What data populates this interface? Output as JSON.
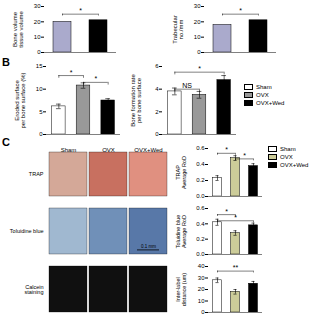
{
  "chart_data": [
    {
      "type": "bar",
      "categories": [
        null,
        null
      ],
      "values": [
        20,
        21
      ],
      "colors": [
        "#aaaacc",
        "black"
      ],
      "ylabel": "Bone volume\ntissue volume",
      "ylim": [
        0,
        30
      ],
      "yticks": [
        0,
        10,
        20,
        30
      ],
      "tick_labels": "y",
      "brackets": [
        {
          "x1": 0,
          "x2": 1,
          "y": 25,
          "label": "*"
        }
      ]
    },
    {
      "type": "bar",
      "categories": [
        null,
        null
      ],
      "values": [
        18,
        21
      ],
      "colors": [
        "#aaaacc",
        "black"
      ],
      "ylabel": "Trabecular\nno./mm",
      "ylim": [
        0,
        30
      ],
      "yticks": [
        0,
        10,
        20,
        30
      ],
      "tick_labels": "y",
      "brackets": [
        {
          "x1": 0,
          "x2": 1,
          "y": 25,
          "label": "*"
        }
      ]
    },
    {
      "type": "bar",
      "title": "B",
      "categories": [
        "Sham",
        "OVX",
        "OVX+Wed"
      ],
      "values": [
        6.2,
        10.8,
        7.5
      ],
      "errors": [
        0.5,
        0.6,
        0.4
      ],
      "colors": [
        "white",
        "#999999",
        "black"
      ],
      "ylabel": "Eroded surface\nper bone surface (%)",
      "ylim": [
        0,
        15
      ],
      "yticks": [
        0,
        5,
        10,
        15
      ],
      "tick_labels": "y",
      "brackets": [
        {
          "x1": 0,
          "x2": 1,
          "y": 13.0,
          "label": "*"
        },
        {
          "x1": 1,
          "x2": 2,
          "y": 11.5,
          "label": "*"
        }
      ]
    },
    {
      "type": "bar",
      "categories": [
        "Sham",
        "OVX",
        "OVX+Wed"
      ],
      "values": [
        3.8,
        3.5,
        4.8
      ],
      "errors": [
        0.3,
        0.3,
        0.4
      ],
      "colors": [
        "white",
        "#999999",
        "black"
      ],
      "ylabel": "Bone formation rate\nper bone surface",
      "ylim": [
        0,
        6
      ],
      "yticks": [
        0,
        2,
        4,
        6
      ],
      "tick_labels": "y",
      "legend": "right",
      "brackets": [
        {
          "x1": 0,
          "x2": 1,
          "y": 4.0,
          "label": "NS"
        },
        {
          "x1": 0,
          "x2": 2,
          "y": 5.5,
          "label": "*"
        }
      ]
    },
    {
      "type": "image_grid",
      "title": "C",
      "categories": [
        "Sham",
        "OVX",
        "OVX+Wed"
      ],
      "series": [
        {
          "name": "TRAP",
          "colors": [
            "#d4a898",
            "#c87060",
            "#e09080"
          ]
        },
        {
          "name": "Toluidine blue",
          "colors": [
            "#a0b8d0",
            "#7090b8",
            "#5878a8"
          ],
          "annotation": "0.1 mm"
        },
        {
          "name": "Calcein\nstaining",
          "colors": [
            "#101010",
            "#101010",
            "#101010"
          ]
        }
      ]
    },
    {
      "type": "bar",
      "categories": [
        "Sham",
        "OVX",
        "OVX+Wed"
      ],
      "values": [
        0.23,
        0.48,
        0.38
      ],
      "errors": [
        0.03,
        0.03,
        0.03
      ],
      "colors": [
        "white",
        "#cccc99",
        "black"
      ],
      "ylabel": "TRAP\nAverage RoD",
      "ylim": [
        0,
        0.6
      ],
      "yticks": [
        {
          "value": 0,
          "label": "0.0"
        },
        0.2,
        0.4,
        0.6
      ],
      "tick_labels": "y",
      "legend": "right",
      "brackets": [
        {
          "x1": 0,
          "x2": 1,
          "y": 0.54,
          "label": "*"
        },
        {
          "x1": 1,
          "x2": 2,
          "y": 0.47,
          "label": "*"
        }
      ]
    },
    {
      "type": "bar",
      "categories": [
        "Sham",
        "OVX",
        "OVX+Wed"
      ],
      "values": [
        0.42,
        0.28,
        0.38
      ],
      "errors": [
        0.04,
        0.03,
        0.03
      ],
      "colors": [
        "white",
        "#cccc99",
        "black"
      ],
      "ylabel": "Toluidine blue\nAverage RoD",
      "ylim": [
        0,
        0.6
      ],
      "yticks": [
        {
          "value": 0,
          "label": "0.0"
        },
        0.2,
        0.4,
        0.6
      ],
      "tick_labels": "y",
      "brackets": [
        {
          "x1": 0,
          "x2": 1,
          "y": 0.52,
          "label": "*"
        },
        {
          "x1": 0,
          "x2": 2,
          "y": 0.44,
          "label": "*"
        }
      ]
    },
    {
      "type": "bar",
      "categories": [
        "Sham",
        "OVX",
        "OVX+Wed"
      ],
      "values": [
        28,
        18,
        25
      ],
      "errors": [
        2,
        2,
        2
      ],
      "colors": [
        "white",
        "#cccc99",
        "black"
      ],
      "ylabel": "Inter-label\ndistance (um)",
      "ylim": [
        0,
        40
      ],
      "yticks": [
        0,
        10,
        20,
        30,
        40
      ],
      "tick_labels": "y",
      "brackets": [
        {
          "x1": 0,
          "x2": 2,
          "y": 36,
          "label": "**"
        }
      ]
    }
  ]
}
